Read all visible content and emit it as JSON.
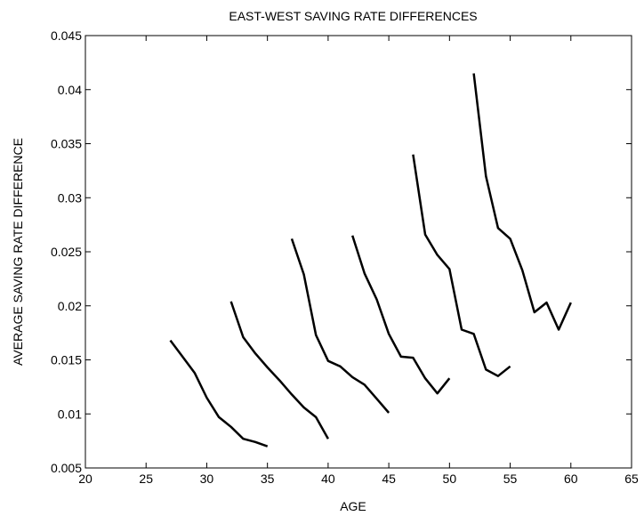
{
  "chart_data": {
    "type": "line",
    "title": "EAST-WEST SAVING RATE DIFFERENCES",
    "xlabel": "AGE",
    "ylabel": "AVERAGE SAVING RATE DIFFERENCE",
    "xlim": [
      20,
      65
    ],
    "ylim": [
      0.005,
      0.045
    ],
    "xticks": [
      20,
      25,
      30,
      35,
      40,
      45,
      50,
      55,
      60,
      65
    ],
    "yticks": [
      0.005,
      0.01,
      0.015,
      0.02,
      0.025,
      0.03,
      0.035,
      0.04,
      0.045
    ],
    "xtick_labels": [
      "20",
      "25",
      "30",
      "35",
      "40",
      "45",
      "50",
      "55",
      "60",
      "65"
    ],
    "ytick_labels": [
      "0.005",
      "0.01",
      "0.015",
      "0.02",
      "0.025",
      "0.03",
      "0.035",
      "0.04",
      "0.045"
    ],
    "grid": false,
    "line_color": "#000000",
    "series": [
      {
        "x": [
          27,
          28,
          29,
          30,
          31,
          32,
          33,
          34,
          35
        ],
        "y": [
          0.0168,
          0.0153,
          0.0138,
          0.0115,
          0.0097,
          0.0088,
          0.0077,
          0.0074,
          0.007
        ]
      },
      {
        "x": [
          32,
          33,
          34,
          35,
          36,
          37,
          38,
          39,
          40
        ],
        "y": [
          0.0204,
          0.0171,
          0.0156,
          0.0143,
          0.0131,
          0.0118,
          0.0106,
          0.0097,
          0.0077
        ]
      },
      {
        "x": [
          37,
          38,
          39,
          40,
          41,
          42,
          43,
          44,
          45
        ],
        "y": [
          0.0262,
          0.0229,
          0.0173,
          0.0149,
          0.0144,
          0.0134,
          0.0127,
          0.0114,
          0.0101
        ]
      },
      {
        "x": [
          42,
          43,
          44,
          45,
          46,
          47,
          48,
          49,
          50
        ],
        "y": [
          0.0265,
          0.023,
          0.0206,
          0.0174,
          0.0153,
          0.0152,
          0.0133,
          0.0119,
          0.0133
        ]
      },
      {
        "x": [
          47,
          48,
          49,
          50,
          51,
          52,
          53,
          54,
          55
        ],
        "y": [
          0.034,
          0.0266,
          0.0247,
          0.0234,
          0.0178,
          0.0174,
          0.0141,
          0.0135,
          0.0144
        ]
      },
      {
        "x": [
          52,
          53,
          54,
          55,
          56,
          57,
          58,
          59,
          60
        ],
        "y": [
          0.0415,
          0.032,
          0.0272,
          0.0262,
          0.0233,
          0.0194,
          0.0203,
          0.0178,
          0.0203
        ]
      }
    ]
  }
}
